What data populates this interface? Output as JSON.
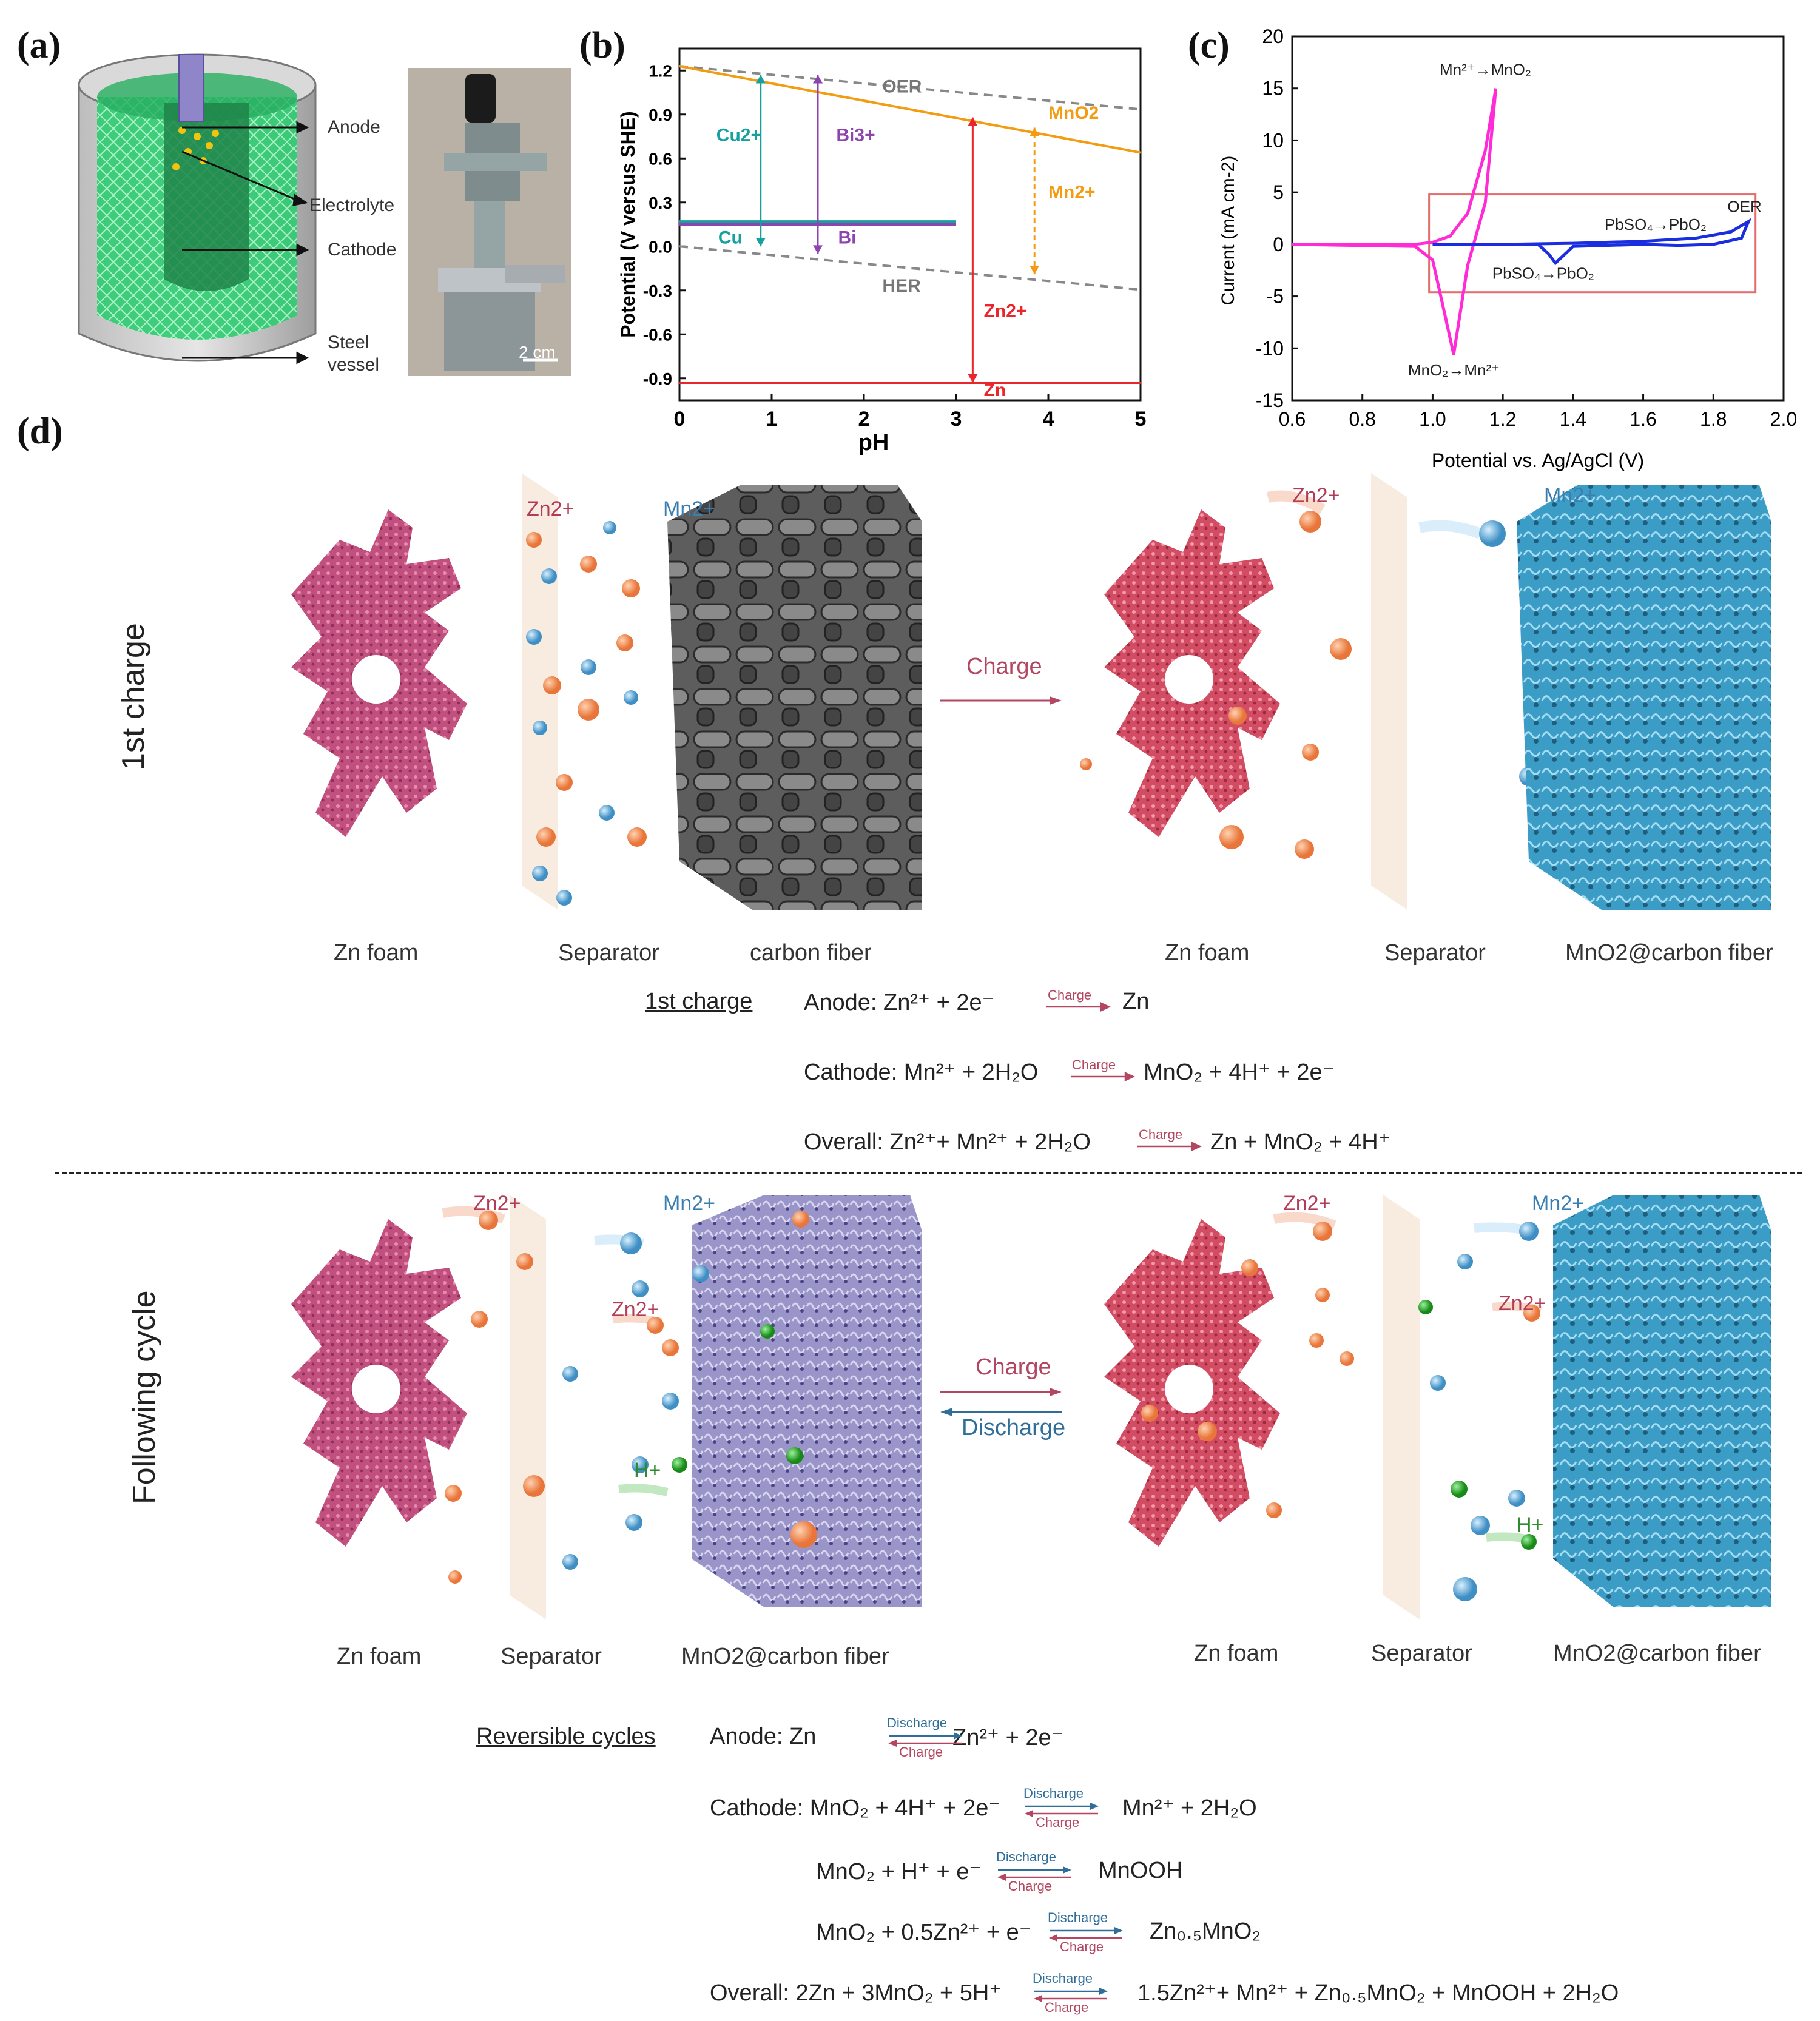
{
  "panel_a": {
    "label": "(a)",
    "labels": [
      "Anode",
      "Electrolyte",
      "Cathode",
      "Steel",
      "vessel"
    ],
    "scale": "2 cm"
  },
  "panel_b": {
    "label": "(b)",
    "chart_data": {
      "type": "line",
      "xlabel": "pH",
      "ylabel": "Potential (V versus SHE)",
      "xlim": [
        0,
        5
      ],
      "ylim": [
        -1.05,
        1.35
      ],
      "xticks": [
        "0",
        "1",
        "2",
        "3",
        "4",
        "5"
      ],
      "yticks": [
        "-0.9",
        "-0.6",
        "-0.3",
        "0.0",
        "0.3",
        "0.6",
        "0.9",
        "1.2"
      ],
      "series": [
        {
          "name": "OER",
          "x": [
            0,
            5
          ],
          "y": [
            1.23,
            0.935
          ],
          "style": "dashed",
          "color": "#888888"
        },
        {
          "name": "HER",
          "x": [
            0,
            5
          ],
          "y": [
            0.0,
            -0.295
          ],
          "style": "dashed",
          "color": "#888888"
        },
        {
          "name": "MnO2",
          "x": [
            0,
            5
          ],
          "y": [
            1.23,
            0.64
          ],
          "color": "#f39c12"
        },
        {
          "name": "Cu",
          "x": [
            0,
            3.0
          ],
          "y": [
            0.17,
            0.17
          ],
          "color": "#16a0a0"
        },
        {
          "name": "Bi",
          "x": [
            0,
            3.0
          ],
          "y": [
            0.15,
            0.15
          ],
          "color": "#8e44ad"
        },
        {
          "name": "Zn",
          "x": [
            0,
            5
          ],
          "y": [
            -0.93,
            -0.93
          ],
          "color": "#e8262b"
        }
      ],
      "annotations": [
        "OER",
        "HER",
        "MnO2",
        "Mn2+",
        "Cu2+",
        "Cu",
        "Bi3+",
        "Bi",
        "Zn2+",
        "Zn"
      ]
    }
  },
  "panel_c": {
    "label": "(c)",
    "chart_data": {
      "type": "line",
      "xlabel": "Potential vs. Ag/AgCl (V)",
      "ylabel": "Current (mA cm-2)",
      "xlim": [
        0.6,
        2.0
      ],
      "ylim": [
        -15,
        20
      ],
      "xticks": [
        "0.6",
        "0.8",
        "1.0",
        "1.2",
        "1.4",
        "1.6",
        "1.8",
        "2.0"
      ],
      "yticks": [
        "-15",
        "-10",
        "-5",
        "0",
        "5",
        "10",
        "15",
        "20"
      ],
      "series": [
        {
          "name": "Mn",
          "color": "#ff2bd6",
          "x": [
            0.6,
            0.95,
            1.0,
            1.05,
            1.1,
            1.15,
            1.18,
            1.15,
            1.1,
            1.06,
            1.03,
            1.0,
            0.95,
            0.6
          ],
          "y": [
            0,
            0,
            0.2,
            0.8,
            3,
            9,
            15,
            4,
            -2,
            -10.6,
            -6,
            -1.5,
            -0.2,
            0
          ]
        },
        {
          "name": "Pb",
          "color": "#1a2ee0",
          "x": [
            1.0,
            1.3,
            1.33,
            1.35,
            1.4,
            1.6,
            1.7,
            1.8,
            1.88,
            1.9,
            1.85,
            1.75,
            1.6,
            1.4,
            1.2,
            1.0
          ],
          "y": [
            0,
            0,
            -0.9,
            -1.8,
            -0.2,
            0,
            -0.1,
            0,
            0.6,
            2.2,
            1.2,
            0.6,
            0.3,
            0.1,
            0,
            0
          ]
        }
      ],
      "annotations": [
        "Mn²⁺→MnO₂",
        "PbSO₄→PbO₂",
        "OER",
        "PbSO₄→PbO₂",
        "MnO₂→Mn²⁺"
      ]
    }
  },
  "panel_d": {
    "label": "(d)",
    "row1": {
      "side_label": "1st charge",
      "left_ions": [
        "Zn2+",
        "Mn2+"
      ],
      "right_ions": [
        "Zn2+",
        "Mn2+"
      ],
      "arrow": "Charge",
      "captions_left": [
        "Zn foam",
        "Separator",
        "carbon fiber"
      ],
      "captions_right": [
        "Zn foam",
        "Separator",
        "MnO2@carbon fiber"
      ]
    },
    "eq1": {
      "heading": "1st charge",
      "anode": "Anode:  Zn²⁺ + 2e⁻",
      "anode_product": "Zn",
      "cathode": "Cathode: Mn²⁺ + 2H₂O",
      "cathode_product": "MnO₂ + 4H⁺ + 2e⁻",
      "overall": "Overall:  Zn²⁺+ Mn²⁺ + 2H₂O",
      "overall_product": "Zn + MnO₂ + 4H⁺",
      "arrow_word": "Charge"
    },
    "row2": {
      "side_label": "Following cycle",
      "ions_left": [
        "Zn2+",
        "Mn2+",
        "Zn2+",
        "H+"
      ],
      "ions_right": [
        "Zn2+",
        "Mn2+",
        "Zn2+",
        "H+"
      ],
      "arrow_top": "Charge",
      "arrow_bottom": "Discharge",
      "captions_left": [
        "Zn foam",
        "Separator",
        "MnO2@carbon fiber"
      ],
      "captions_right": [
        "Zn foam",
        "Separator",
        "MnO2@carbon fiber"
      ]
    },
    "eq2": {
      "heading": "Reversible cycles",
      "discharge": "Discharge",
      "charge": "Charge",
      "lines": [
        {
          "lhs": "Anode:   Zn",
          "rhs": "Zn²⁺ + 2e⁻"
        },
        {
          "lhs": "Cathode: MnO₂ + 4H⁺ + 2e⁻",
          "rhs": "Mn²⁺ + 2H₂O"
        },
        {
          "lhs": "MnO₂ + H⁺ + e⁻",
          "rhs": "MnOOH"
        },
        {
          "lhs": "MnO₂ + 0.5Zn²⁺ + e⁻",
          "rhs": "Zn₀.₅MnO₂"
        },
        {
          "lhs": "Overall:  2Zn + 3MnO₂ + 5H⁺",
          "rhs": "1.5Zn²⁺+ Mn²⁺ + Zn₀.₅MnO₂ + MnOOH + 2H₂O"
        }
      ]
    }
  }
}
